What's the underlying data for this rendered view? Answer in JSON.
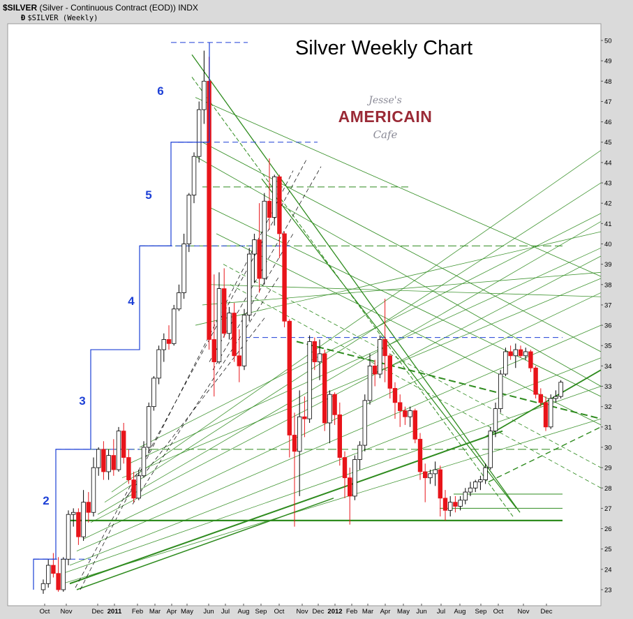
{
  "header": {
    "symbol": "$SILVER",
    "description": "(Silver - Continuous Contract (EOD))",
    "exchange": "INDX",
    "marker": "Ð",
    "subtitle": "$SILVER (Weekly)"
  },
  "logo": {
    "line1": "Jesse's",
    "line2": "AMERICAIN",
    "line3": "Cafe"
  },
  "colors": {
    "background": "#ffffff",
    "page": "#dadada",
    "up_candle_fill": "#ffffff",
    "down_candle_fill": "#e8141a",
    "trendline_green": "#2e8b1e",
    "wave_blue": "#1c3fd6",
    "label_blue": "#1c3fd6",
    "dash_black": "#000000"
  },
  "chart_data": {
    "type": "candlestick",
    "title": "Silver Weekly Chart",
    "interval": "weekly",
    "ylim": [
      22.7,
      50.3
    ],
    "y_ticks": [
      23,
      24,
      25,
      26,
      27,
      28,
      29,
      30,
      31,
      32,
      33,
      34,
      35,
      36,
      37,
      38,
      39,
      40,
      41,
      42,
      43,
      44,
      45,
      46,
      47,
      48,
      49,
      50
    ],
    "x_labels": [
      {
        "label": "Oct",
        "bold": false
      },
      {
        "label": "Nov",
        "bold": false
      },
      {
        "label": "Dec",
        "bold": false
      },
      {
        "label": "2011",
        "bold": true
      },
      {
        "label": "Feb",
        "bold": false
      },
      {
        "label": "Mar",
        "bold": false
      },
      {
        "label": "Apr",
        "bold": false
      },
      {
        "label": "May",
        "bold": false
      },
      {
        "label": "Jun",
        "bold": false
      },
      {
        "label": "Jul",
        "bold": false
      },
      {
        "label": "Aug",
        "bold": false
      },
      {
        "label": "Sep",
        "bold": false
      },
      {
        "label": "Oct",
        "bold": false
      },
      {
        "label": "Nov",
        "bold": false
      },
      {
        "label": "Dec",
        "bold": false
      },
      {
        "label": "2012",
        "bold": true
      },
      {
        "label": "Feb",
        "bold": false
      },
      {
        "label": "Mar",
        "bold": false
      },
      {
        "label": "Apr",
        "bold": false
      },
      {
        "label": "May",
        "bold": false
      },
      {
        "label": "Jun",
        "bold": false
      },
      {
        "label": "Jul",
        "bold": false
      },
      {
        "label": "Aug",
        "bold": false
      },
      {
        "label": "Sep",
        "bold": false
      },
      {
        "label": "Oct",
        "bold": false
      },
      {
        "label": "Nov",
        "bold": false
      },
      {
        "label": "Dec",
        "bold": false
      }
    ],
    "candles": [
      {
        "o": 23.0,
        "h": 23.5,
        "l": 22.8,
        "c": 23.3
      },
      {
        "o": 23.3,
        "h": 24.5,
        "l": 23.1,
        "c": 24.2
      },
      {
        "o": 24.2,
        "h": 24.8,
        "l": 23.6,
        "c": 23.8
      },
      {
        "o": 23.8,
        "h": 24.6,
        "l": 22.9,
        "c": 23.0
      },
      {
        "o": 23.0,
        "h": 24.6,
        "l": 22.9,
        "c": 24.5
      },
      {
        "o": 24.5,
        "h": 26.9,
        "l": 24.2,
        "c": 26.7
      },
      {
        "o": 26.7,
        "h": 27.0,
        "l": 26.1,
        "c": 26.8
      },
      {
        "o": 26.8,
        "h": 27.0,
        "l": 25.2,
        "c": 25.6
      },
      {
        "o": 25.6,
        "h": 27.9,
        "l": 25.4,
        "c": 27.3
      },
      {
        "o": 27.3,
        "h": 27.8,
        "l": 26.3,
        "c": 26.8
      },
      {
        "o": 26.8,
        "h": 29.5,
        "l": 26.6,
        "c": 29.0
      },
      {
        "o": 29.0,
        "h": 30.0,
        "l": 28.6,
        "c": 29.9
      },
      {
        "o": 29.9,
        "h": 30.3,
        "l": 28.4,
        "c": 28.8
      },
      {
        "o": 28.8,
        "h": 29.9,
        "l": 28.4,
        "c": 29.6
      },
      {
        "o": 29.6,
        "h": 30.4,
        "l": 28.6,
        "c": 28.9
      },
      {
        "o": 28.9,
        "h": 31.0,
        "l": 28.8,
        "c": 30.8
      },
      {
        "o": 30.8,
        "h": 31.2,
        "l": 29.2,
        "c": 29.5
      },
      {
        "o": 29.5,
        "h": 29.9,
        "l": 28.2,
        "c": 28.4
      },
      {
        "o": 28.4,
        "h": 28.8,
        "l": 27.3,
        "c": 27.5
      },
      {
        "o": 27.5,
        "h": 28.9,
        "l": 27.4,
        "c": 28.6
      },
      {
        "o": 28.6,
        "h": 30.3,
        "l": 28.5,
        "c": 30.0
      },
      {
        "o": 30.0,
        "h": 32.2,
        "l": 29.7,
        "c": 32.0
      },
      {
        "o": 32.0,
        "h": 33.5,
        "l": 31.8,
        "c": 33.4
      },
      {
        "o": 33.4,
        "h": 35.0,
        "l": 33.1,
        "c": 34.8
      },
      {
        "o": 34.8,
        "h": 35.6,
        "l": 34.2,
        "c": 35.3
      },
      {
        "o": 35.3,
        "h": 36.0,
        "l": 34.8,
        "c": 35.1
      },
      {
        "o": 35.1,
        "h": 37.0,
        "l": 35.0,
        "c": 36.8
      },
      {
        "o": 36.8,
        "h": 38.0,
        "l": 36.7,
        "c": 37.6
      },
      {
        "o": 37.6,
        "h": 40.5,
        "l": 37.3,
        "c": 40.0
      },
      {
        "o": 40.0,
        "h": 42.5,
        "l": 39.6,
        "c": 42.4
      },
      {
        "o": 42.4,
        "h": 44.5,
        "l": 42.0,
        "c": 44.3
      },
      {
        "o": 44.3,
        "h": 47.0,
        "l": 44.0,
        "c": 46.6
      },
      {
        "o": 46.6,
        "h": 49.5,
        "l": 45.9,
        "c": 48.0
      },
      {
        "o": 48.0,
        "h": 49.2,
        "l": 34.8,
        "c": 35.3
      },
      {
        "o": 35.3,
        "h": 38.5,
        "l": 32.5,
        "c": 34.2
      },
      {
        "o": 34.2,
        "h": 38.6,
        "l": 34.1,
        "c": 37.8
      },
      {
        "o": 37.8,
        "h": 38.8,
        "l": 35.4,
        "c": 35.6
      },
      {
        "o": 35.6,
        "h": 36.9,
        "l": 35.3,
        "c": 36.6
      },
      {
        "o": 36.6,
        "h": 37.1,
        "l": 34.2,
        "c": 34.5
      },
      {
        "o": 34.5,
        "h": 35.8,
        "l": 33.2,
        "c": 34.0
      },
      {
        "o": 34.0,
        "h": 36.8,
        "l": 33.8,
        "c": 36.5
      },
      {
        "o": 36.5,
        "h": 39.8,
        "l": 36.2,
        "c": 39.5
      },
      {
        "o": 39.5,
        "h": 40.5,
        "l": 38.1,
        "c": 40.2
      },
      {
        "o": 40.2,
        "h": 42.0,
        "l": 37.6,
        "c": 38.3
      },
      {
        "o": 38.3,
        "h": 42.5,
        "l": 38.0,
        "c": 42.1
      },
      {
        "o": 42.1,
        "h": 44.2,
        "l": 40.7,
        "c": 41.3
      },
      {
        "o": 41.3,
        "h": 43.4,
        "l": 40.9,
        "c": 43.3
      },
      {
        "o": 43.3,
        "h": 43.4,
        "l": 39.3,
        "c": 40.5
      },
      {
        "o": 40.5,
        "h": 40.6,
        "l": 35.9,
        "c": 36.2
      },
      {
        "o": 36.2,
        "h": 36.3,
        "l": 29.5,
        "c": 30.6
      },
      {
        "o": 30.6,
        "h": 31.7,
        "l": 26.1,
        "c": 29.8
      },
      {
        "o": 29.8,
        "h": 32.8,
        "l": 27.6,
        "c": 31.5
      },
      {
        "o": 31.5,
        "h": 32.5,
        "l": 30.5,
        "c": 31.4
      },
      {
        "o": 31.4,
        "h": 35.5,
        "l": 31.2,
        "c": 35.2
      },
      {
        "o": 35.2,
        "h": 35.4,
        "l": 33.8,
        "c": 34.2
      },
      {
        "o": 34.2,
        "h": 35.3,
        "l": 33.3,
        "c": 34.6
      },
      {
        "o": 34.6,
        "h": 34.8,
        "l": 30.8,
        "c": 31.2
      },
      {
        "o": 31.2,
        "h": 32.8,
        "l": 30.2,
        "c": 32.6
      },
      {
        "o": 32.6,
        "h": 32.7,
        "l": 31.1,
        "c": 31.6
      },
      {
        "o": 31.6,
        "h": 32.2,
        "l": 29.1,
        "c": 29.5
      },
      {
        "o": 29.5,
        "h": 29.8,
        "l": 27.5,
        "c": 28.5
      },
      {
        "o": 28.5,
        "h": 29.0,
        "l": 26.2,
        "c": 27.6
      },
      {
        "o": 27.6,
        "h": 29.6,
        "l": 27.4,
        "c": 29.4
      },
      {
        "o": 29.4,
        "h": 30.3,
        "l": 28.9,
        "c": 30.1
      },
      {
        "o": 30.1,
        "h": 32.6,
        "l": 29.8,
        "c": 32.3
      },
      {
        "o": 32.3,
        "h": 34.6,
        "l": 32.1,
        "c": 34.0
      },
      {
        "o": 34.0,
        "h": 34.3,
        "l": 33.0,
        "c": 33.6
      },
      {
        "o": 33.6,
        "h": 35.5,
        "l": 33.4,
        "c": 35.3
      },
      {
        "o": 35.3,
        "h": 37.3,
        "l": 33.2,
        "c": 34.5
      },
      {
        "o": 34.5,
        "h": 34.6,
        "l": 32.4,
        "c": 32.9
      },
      {
        "o": 32.9,
        "h": 33.2,
        "l": 31.4,
        "c": 32.2
      },
      {
        "o": 32.2,
        "h": 32.6,
        "l": 31.0,
        "c": 31.8
      },
      {
        "o": 31.8,
        "h": 32.0,
        "l": 31.1,
        "c": 31.5
      },
      {
        "o": 31.5,
        "h": 32.0,
        "l": 31.0,
        "c": 31.8
      },
      {
        "o": 31.8,
        "h": 31.9,
        "l": 30.2,
        "c": 30.4
      },
      {
        "o": 30.4,
        "h": 30.7,
        "l": 28.4,
        "c": 28.8
      },
      {
        "o": 28.8,
        "h": 29.2,
        "l": 27.3,
        "c": 28.5
      },
      {
        "o": 28.5,
        "h": 28.9,
        "l": 28.2,
        "c": 28.7
      },
      {
        "o": 28.7,
        "h": 29.3,
        "l": 28.1,
        "c": 28.9
      },
      {
        "o": 28.9,
        "h": 29.1,
        "l": 26.6,
        "c": 27.5
      },
      {
        "o": 27.5,
        "h": 27.9,
        "l": 26.4,
        "c": 26.9
      },
      {
        "o": 26.9,
        "h": 27.6,
        "l": 26.6,
        "c": 27.3
      },
      {
        "o": 27.3,
        "h": 27.6,
        "l": 26.8,
        "c": 27.1
      },
      {
        "o": 27.1,
        "h": 27.6,
        "l": 26.9,
        "c": 27.4
      },
      {
        "o": 27.4,
        "h": 28.0,
        "l": 27.2,
        "c": 27.8
      },
      {
        "o": 27.8,
        "h": 28.3,
        "l": 27.6,
        "c": 28.0
      },
      {
        "o": 28.0,
        "h": 28.4,
        "l": 27.8,
        "c": 28.3
      },
      {
        "o": 28.3,
        "h": 28.6,
        "l": 27.9,
        "c": 28.4
      },
      {
        "o": 28.4,
        "h": 29.2,
        "l": 28.2,
        "c": 29.0
      },
      {
        "o": 29.0,
        "h": 31.0,
        "l": 28.9,
        "c": 30.8
      },
      {
        "o": 30.8,
        "h": 32.2,
        "l": 30.5,
        "c": 31.9
      },
      {
        "o": 31.9,
        "h": 33.8,
        "l": 31.7,
        "c": 33.6
      },
      {
        "o": 33.6,
        "h": 34.9,
        "l": 33.5,
        "c": 34.7
      },
      {
        "o": 34.7,
        "h": 35.0,
        "l": 34.3,
        "c": 34.5
      },
      {
        "o": 34.5,
        "h": 35.1,
        "l": 33.9,
        "c": 34.8
      },
      {
        "o": 34.8,
        "h": 35.0,
        "l": 34.4,
        "c": 34.5
      },
      {
        "o": 34.5,
        "h": 34.9,
        "l": 34.3,
        "c": 34.7
      },
      {
        "o": 34.7,
        "h": 34.8,
        "l": 33.7,
        "c": 33.9
      },
      {
        "o": 33.9,
        "h": 34.0,
        "l": 32.4,
        "c": 32.6
      },
      {
        "o": 32.6,
        "h": 32.9,
        "l": 32.0,
        "c": 32.2
      },
      {
        "o": 32.2,
        "h": 32.5,
        "l": 30.8,
        "c": 31.0
      },
      {
        "o": 31.0,
        "h": 32.6,
        "l": 30.9,
        "c": 32.4
      },
      {
        "o": 32.4,
        "h": 32.8,
        "l": 32.2,
        "c": 32.5
      },
      {
        "o": 32.5,
        "h": 33.3,
        "l": 32.4,
        "c": 33.2
      }
    ],
    "wave_labels": [
      "2",
      "3",
      "4",
      "5",
      "6"
    ],
    "wave_levels": [
      24.5,
      29.9,
      34.8,
      39.9,
      45.0,
      49.9
    ],
    "horizontal_levels": {
      "blue_dashed": [
        24.5,
        29.9,
        35.4,
        39.9,
        45.0,
        49.9
      ],
      "green_solid": [
        26.4
      ],
      "green_dashed": [
        29.9,
        39.9,
        42.8
      ]
    },
    "grid": false,
    "legend": "none"
  }
}
